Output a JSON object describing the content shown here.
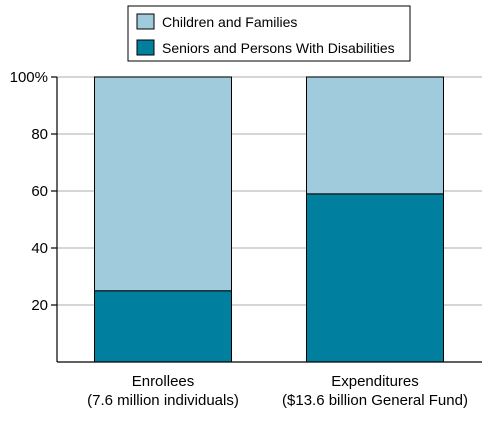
{
  "chart_data": {
    "type": "bar",
    "stacked": true,
    "categories": [
      [
        "Enrollees",
        "(7.6 million individuals)"
      ],
      [
        "Expenditures",
        "($13.6 billion General Fund)"
      ]
    ],
    "series": [
      {
        "name": "Seniors and Persons With Disabilities",
        "color": "#007f9f",
        "values": [
          25,
          59
        ]
      },
      {
        "name": "Children and Families",
        "color": "#a0cbdc",
        "values": [
          75,
          41
        ]
      }
    ],
    "legend_order": [
      1,
      0
    ],
    "legend_position": "top-center",
    "ylim": [
      0,
      100
    ],
    "yticks": [
      20,
      40,
      60,
      80,
      100
    ],
    "ytick_labels": [
      "20",
      "40",
      "60",
      "80",
      "100%"
    ],
    "grid": true,
    "title": "",
    "xlabel": "",
    "ylabel": ""
  }
}
